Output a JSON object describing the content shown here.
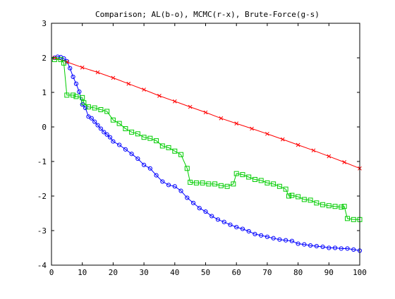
{
  "chart_data": {
    "type": "line",
    "title": "Comparison; AL(b-o), MCMC(r-x), Brute-Force(g-s)",
    "xlim": [
      0,
      100
    ],
    "ylim": [
      -4,
      3
    ],
    "xticks": [
      0,
      10,
      20,
      30,
      40,
      50,
      60,
      70,
      80,
      90,
      100
    ],
    "yticks": [
      -4,
      -3,
      -2,
      -1,
      0,
      1,
      2,
      3
    ],
    "grid": false,
    "series": [
      {
        "color": "#0000ff",
        "marker": "circle",
        "points": [
          [
            1,
            2.0
          ],
          [
            2,
            2.03
          ],
          [
            3,
            2.02
          ],
          [
            4,
            1.98
          ],
          [
            5,
            1.9
          ],
          [
            6,
            1.7
          ],
          [
            7,
            1.45
          ],
          [
            8,
            1.25
          ],
          [
            9,
            1.02
          ],
          [
            10,
            0.65
          ],
          [
            11,
            0.55
          ],
          [
            12,
            0.3
          ],
          [
            13,
            0.25
          ],
          [
            14,
            0.15
          ],
          [
            15,
            0.05
          ],
          [
            16,
            -0.05
          ],
          [
            17,
            -0.15
          ],
          [
            18,
            -0.22
          ],
          [
            19,
            -0.3
          ],
          [
            20,
            -0.42
          ],
          [
            22,
            -0.52
          ],
          [
            24,
            -0.65
          ],
          [
            26,
            -0.78
          ],
          [
            28,
            -0.92
          ],
          [
            30,
            -1.1
          ],
          [
            32,
            -1.2
          ],
          [
            34,
            -1.4
          ],
          [
            36,
            -1.58
          ],
          [
            38,
            -1.68
          ],
          [
            40,
            -1.72
          ],
          [
            42,
            -1.85
          ],
          [
            44,
            -2.05
          ],
          [
            46,
            -2.2
          ],
          [
            48,
            -2.35
          ],
          [
            50,
            -2.45
          ],
          [
            52,
            -2.58
          ],
          [
            54,
            -2.68
          ],
          [
            56,
            -2.75
          ],
          [
            58,
            -2.83
          ],
          [
            60,
            -2.9
          ],
          [
            62,
            -2.95
          ],
          [
            64,
            -3.02
          ],
          [
            66,
            -3.1
          ],
          [
            68,
            -3.14
          ],
          [
            70,
            -3.18
          ],
          [
            72,
            -3.22
          ],
          [
            74,
            -3.26
          ],
          [
            76,
            -3.28
          ],
          [
            78,
            -3.3
          ],
          [
            80,
            -3.38
          ],
          [
            82,
            -3.4
          ],
          [
            84,
            -3.43
          ],
          [
            86,
            -3.45
          ],
          [
            88,
            -3.47
          ],
          [
            90,
            -3.5
          ],
          [
            92,
            -3.5
          ],
          [
            94,
            -3.52
          ],
          [
            96,
            -3.52
          ],
          [
            98,
            -3.55
          ],
          [
            100,
            -3.58
          ]
        ]
      },
      {
        "color": "#ff0000",
        "marker": "x",
        "points": [
          [
            1,
            2.0
          ],
          [
            5,
            1.88
          ],
          [
            10,
            1.72
          ],
          [
            15,
            1.58
          ],
          [
            20,
            1.42
          ],
          [
            25,
            1.25
          ],
          [
            30,
            1.08
          ],
          [
            35,
            0.9
          ],
          [
            40,
            0.74
          ],
          [
            45,
            0.58
          ],
          [
            50,
            0.42
          ],
          [
            55,
            0.25
          ],
          [
            60,
            0.1
          ],
          [
            65,
            -0.05
          ],
          [
            70,
            -0.2
          ],
          [
            75,
            -0.36
          ],
          [
            80,
            -0.52
          ],
          [
            85,
            -0.68
          ],
          [
            90,
            -0.85
          ],
          [
            95,
            -1.02
          ],
          [
            100,
            -1.2
          ]
        ]
      },
      {
        "color": "#00cc00",
        "marker": "square",
        "points": [
          [
            1,
            1.95
          ],
          [
            3,
            1.95
          ],
          [
            4,
            1.85
          ],
          [
            5,
            0.92
          ],
          [
            7,
            0.92
          ],
          [
            8,
            0.88
          ],
          [
            10,
            0.85
          ],
          [
            10.5,
            0.7
          ],
          [
            12,
            0.58
          ],
          [
            14,
            0.55
          ],
          [
            16,
            0.5
          ],
          [
            18,
            0.45
          ],
          [
            20,
            0.2
          ],
          [
            22,
            0.1
          ],
          [
            24,
            -0.05
          ],
          [
            26,
            -0.15
          ],
          [
            28,
            -0.2
          ],
          [
            30,
            -0.3
          ],
          [
            32,
            -0.33
          ],
          [
            34,
            -0.4
          ],
          [
            36,
            -0.55
          ],
          [
            38,
            -0.6
          ],
          [
            40,
            -0.7
          ],
          [
            42,
            -0.8
          ],
          [
            44,
            -1.2
          ],
          [
            45,
            -1.6
          ],
          [
            47,
            -1.62
          ],
          [
            49,
            -1.62
          ],
          [
            51,
            -1.65
          ],
          [
            53,
            -1.65
          ],
          [
            55,
            -1.7
          ],
          [
            57,
            -1.72
          ],
          [
            59,
            -1.65
          ],
          [
            60,
            -1.35
          ],
          [
            62,
            -1.38
          ],
          [
            64,
            -1.45
          ],
          [
            66,
            -1.52
          ],
          [
            68,
            -1.55
          ],
          [
            70,
            -1.62
          ],
          [
            72,
            -1.65
          ],
          [
            74,
            -1.72
          ],
          [
            76,
            -1.8
          ],
          [
            77,
            -2.0
          ],
          [
            78,
            -1.98
          ],
          [
            80,
            -2.02
          ],
          [
            82,
            -2.1
          ],
          [
            84,
            -2.12
          ],
          [
            86,
            -2.2
          ],
          [
            88,
            -2.25
          ],
          [
            90,
            -2.28
          ],
          [
            92,
            -2.3
          ],
          [
            94,
            -2.32
          ],
          [
            95,
            -2.3
          ],
          [
            96,
            -2.65
          ],
          [
            98,
            -2.68
          ],
          [
            100,
            -2.68
          ]
        ]
      }
    ]
  }
}
